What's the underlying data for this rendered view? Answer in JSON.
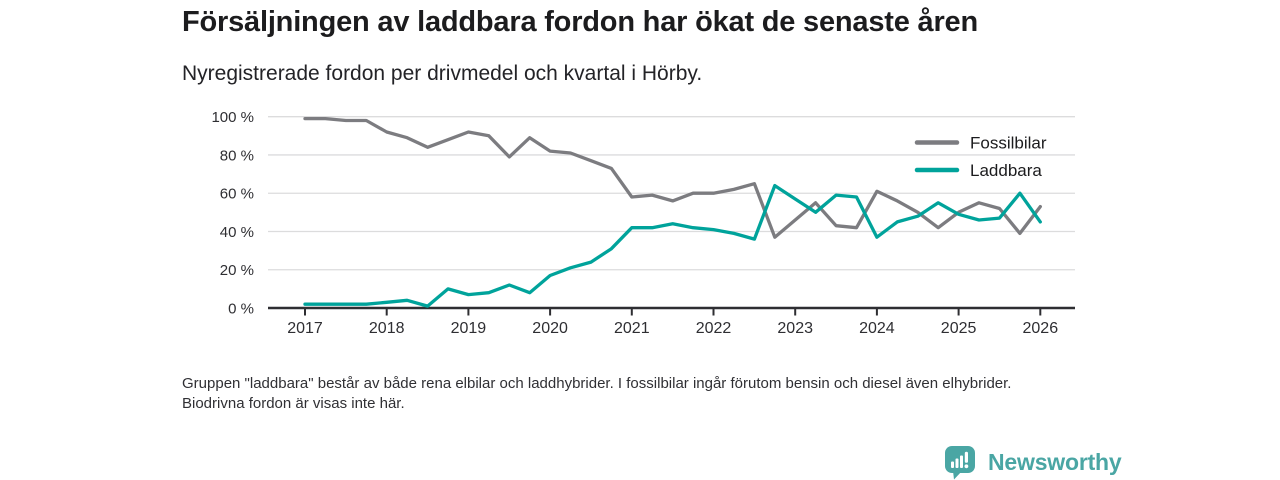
{
  "header": {
    "title": "Försäljningen av laddbara fordon har ökat de senaste åren",
    "subtitle": "Nyregistrerade fordon per drivmedel och kvartal i Hörby."
  },
  "footer": {
    "note": "Gruppen \"laddbara\" består av både rena elbilar och laddhybrider. I fossilbilar ingår förutom bensin och diesel även elhybrider. Biodrivna fordon är visas inte här."
  },
  "logo": {
    "text": "Newsworthy",
    "icon": "newsworthy-speech-bubble-bar-chart-icon",
    "color": "#4aa6a4"
  },
  "chart_data": {
    "type": "line",
    "title": "Försäljningen av laddbara fordon har ökat de senaste åren",
    "subtitle": "Nyregistrerade fordon per drivmedel och kvartal i Hörby.",
    "unit": "%",
    "ylim": [
      0,
      100
    ],
    "grid": true,
    "legend_position": "top-right",
    "x_tick_labels": [
      "2017",
      "2018",
      "2019",
      "2020",
      "2021",
      "2022",
      "2023",
      "2024",
      "2025",
      "2026"
    ],
    "y_tick_labels": [
      "0 %",
      "20 %",
      "40 %",
      "60 %",
      "80 %",
      "100 %"
    ],
    "y_tick_values": [
      0,
      20,
      40,
      60,
      80,
      100
    ],
    "categories": [
      "2017 Q1",
      "2017 Q2",
      "2017 Q3",
      "2017 Q4",
      "2018 Q1",
      "2018 Q2",
      "2018 Q3",
      "2018 Q4",
      "2019 Q1",
      "2019 Q2",
      "2019 Q3",
      "2019 Q4",
      "2020 Q1",
      "2020 Q2",
      "2020 Q3",
      "2020 Q4",
      "2021 Q1",
      "2021 Q2",
      "2021 Q3",
      "2021 Q4",
      "2022 Q1",
      "2022 Q2",
      "2022 Q3",
      "2022 Q4",
      "2023 Q1",
      "2023 Q2",
      "2023 Q3",
      "2023 Q4",
      "2024 Q1",
      "2024 Q2",
      "2024 Q3",
      "2024 Q4",
      "2025 Q1",
      "2025 Q2",
      "2025 Q3",
      "2025 Q4",
      "2026 Q1"
    ],
    "series": [
      {
        "name": "Fossilbilar",
        "color": "#7c7c80",
        "values": [
          99,
          99,
          98,
          98,
          92,
          89,
          84,
          88,
          92,
          90,
          79,
          89,
          82,
          81,
          77,
          73,
          58,
          59,
          56,
          60,
          60,
          62,
          65,
          37,
          46,
          55,
          43,
          42,
          61,
          56,
          50,
          42,
          50,
          55,
          52,
          39,
          53
        ]
      },
      {
        "name": "Laddbara",
        "color": "#00a39b",
        "values": [
          2,
          2,
          2,
          2,
          3,
          4,
          1,
          10,
          7,
          8,
          12,
          8,
          17,
          21,
          24,
          31,
          42,
          42,
          44,
          42,
          41,
          39,
          36,
          64,
          57,
          50,
          59,
          58,
          37,
          45,
          48,
          55,
          49,
          46,
          47,
          60,
          45
        ]
      }
    ],
    "axis_color": "#2e2e32",
    "gridline_color": "#dcdcdd",
    "label_color": "#2e2e32"
  }
}
